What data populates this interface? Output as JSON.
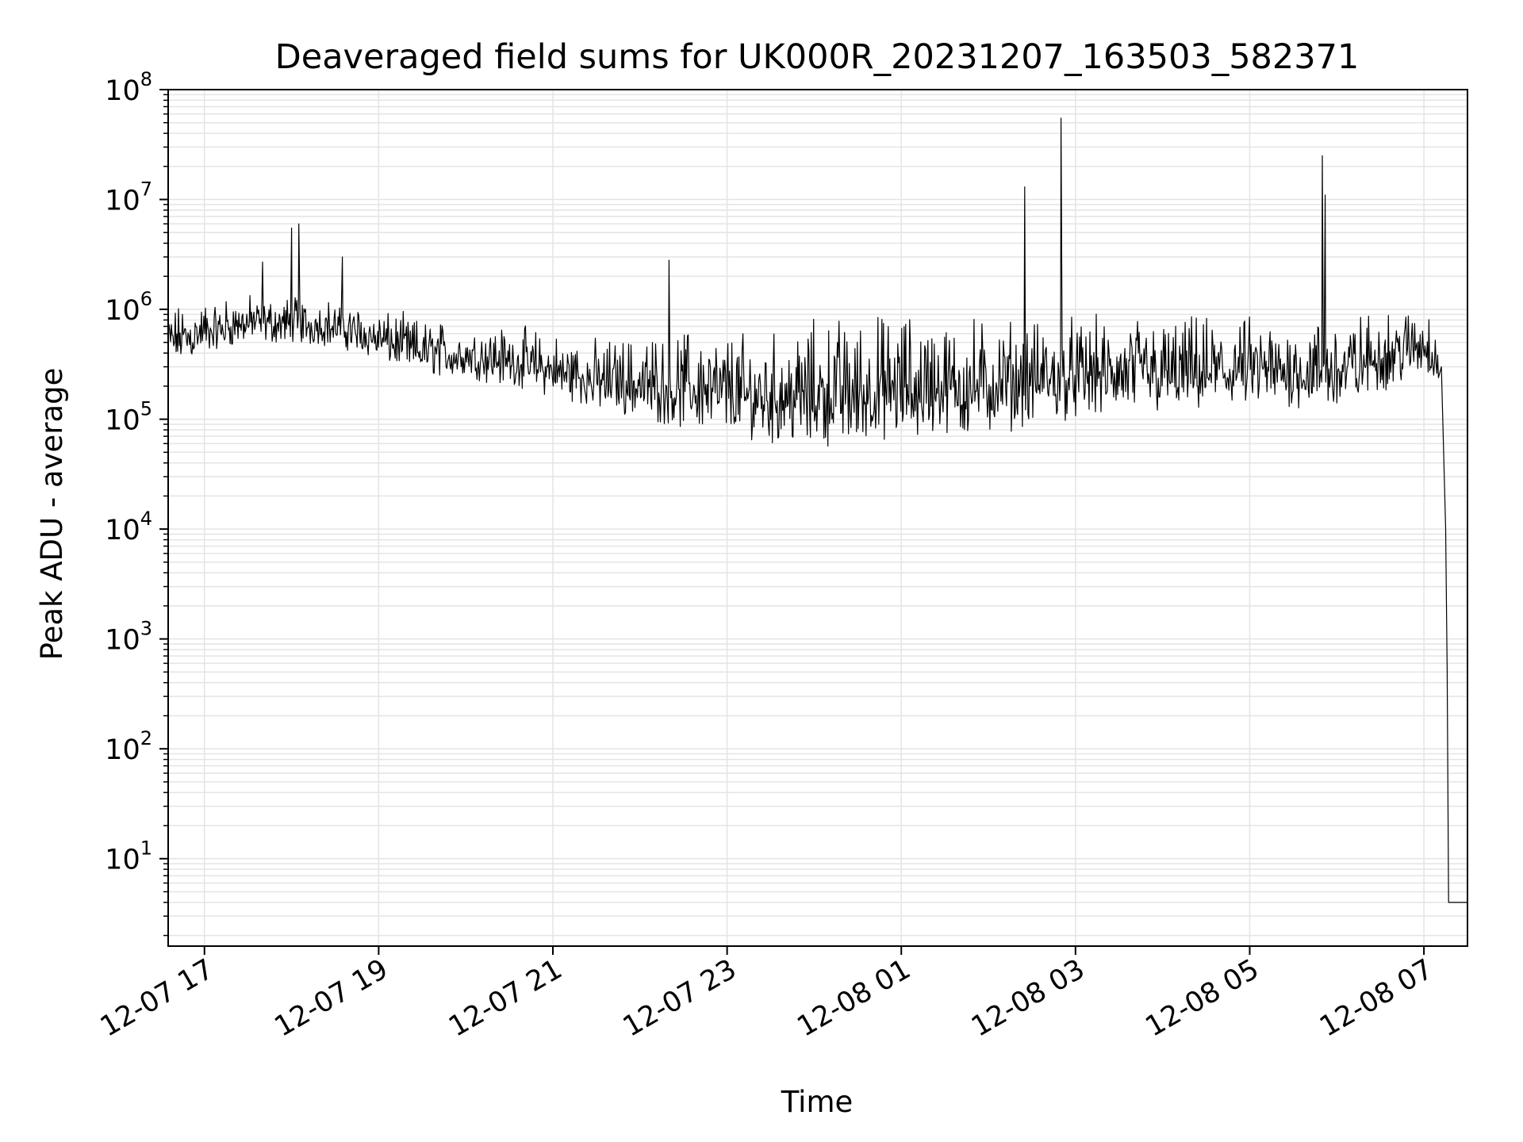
{
  "chart_data": {
    "type": "line",
    "title": "Deaveraged field sums for UK000R_20231207_163503_582371",
    "xlabel": "Time",
    "ylabel": "Peak ADU - average",
    "yscale": "log",
    "ylim": [
      1.6,
      100000000
    ],
    "xlim": [
      "2023-12-07 16:35",
      "2023-12-08 07:30"
    ],
    "grid": true,
    "line_color": "#000000",
    "x_ticks": [
      {
        "value": "2023-12-07 17:00",
        "label": "12-07 17"
      },
      {
        "value": "2023-12-07 19:00",
        "label": "12-07 19"
      },
      {
        "value": "2023-12-07 21:00",
        "label": "12-07 21"
      },
      {
        "value": "2023-12-07 23:00",
        "label": "12-07 23"
      },
      {
        "value": "2023-12-08 01:00",
        "label": "12-08 01"
      },
      {
        "value": "2023-12-08 03:00",
        "label": "12-08 03"
      },
      {
        "value": "2023-12-08 05:00",
        "label": "12-08 05"
      },
      {
        "value": "2023-12-08 07:00",
        "label": "12-08 07"
      }
    ],
    "y_ticks": [
      {
        "value": 10,
        "base": "10",
        "exp": "1"
      },
      {
        "value": 100,
        "base": "10",
        "exp": "2"
      },
      {
        "value": 1000,
        "base": "10",
        "exp": "3"
      },
      {
        "value": 10000,
        "base": "10",
        "exp": "4"
      },
      {
        "value": 100000,
        "base": "10",
        "exp": "5"
      },
      {
        "value": 1000000,
        "base": "10",
        "exp": "6"
      },
      {
        "value": 10000000,
        "base": "10",
        "exp": "7"
      },
      {
        "value": 100000000,
        "base": "10",
        "exp": "8"
      }
    ],
    "series": [
      {
        "envelope": [
          {
            "x": "2023-12-07 16:35",
            "low": 300000,
            "high": 1200000
          },
          {
            "x": "2023-12-07 17:30",
            "low": 500000,
            "high": 1500000
          },
          {
            "x": "2023-12-07 18:30",
            "low": 450000,
            "high": 1400000
          },
          {
            "x": "2023-12-07 19:30",
            "low": 250000,
            "high": 900000
          },
          {
            "x": "2023-12-07 20:30",
            "low": 200000,
            "high": 800000
          },
          {
            "x": "2023-12-07 21:30",
            "low": 120000,
            "high": 600000
          },
          {
            "x": "2023-12-07 22:30",
            "low": 80000,
            "high": 800000
          },
          {
            "x": "2023-12-07 23:30",
            "low": 60000,
            "high": 700000
          },
          {
            "x": "2023-12-08 00:00",
            "low": 55000,
            "high": 1000000
          },
          {
            "x": "2023-12-08 01:00",
            "low": 60000,
            "high": 1200000
          },
          {
            "x": "2023-12-08 02:00",
            "low": 70000,
            "high": 1000000
          },
          {
            "x": "2023-12-08 03:00",
            "low": 100000,
            "high": 1000000
          },
          {
            "x": "2023-12-08 04:00",
            "low": 110000,
            "high": 1000000
          },
          {
            "x": "2023-12-08 05:00",
            "low": 120000,
            "high": 1000000
          },
          {
            "x": "2023-12-08 06:00",
            "low": 120000,
            "high": 1000000
          },
          {
            "x": "2023-12-08 07:00",
            "low": 250000,
            "high": 1300000
          },
          {
            "x": "2023-12-08 07:10",
            "low": 200000,
            "high": 1000000
          }
        ],
        "spikes": [
          {
            "x": "2023-12-07 18:05",
            "y": 6000000
          },
          {
            "x": "2023-12-07 18:00",
            "y": 5500000
          },
          {
            "x": "2023-12-07 17:40",
            "y": 2700000
          },
          {
            "x": "2023-12-07 18:35",
            "y": 3000000
          },
          {
            "x": "2023-12-07 22:20",
            "y": 2800000
          },
          {
            "x": "2023-12-08 02:25",
            "y": 13000000
          },
          {
            "x": "2023-12-08 02:50",
            "y": 55000000
          },
          {
            "x": "2023-12-08 05:50",
            "y": 25000000
          },
          {
            "x": "2023-12-08 05:52",
            "y": 11000000
          }
        ],
        "tail": [
          {
            "x": "2023-12-08 07:12",
            "y": 300000
          },
          {
            "x": "2023-12-08 07:15",
            "y": 10000
          },
          {
            "x": "2023-12-08 07:16",
            "y": 500
          },
          {
            "x": "2023-12-08 07:17",
            "y": 4
          },
          {
            "x": "2023-12-08 07:30",
            "y": 4
          }
        ]
      }
    ]
  }
}
